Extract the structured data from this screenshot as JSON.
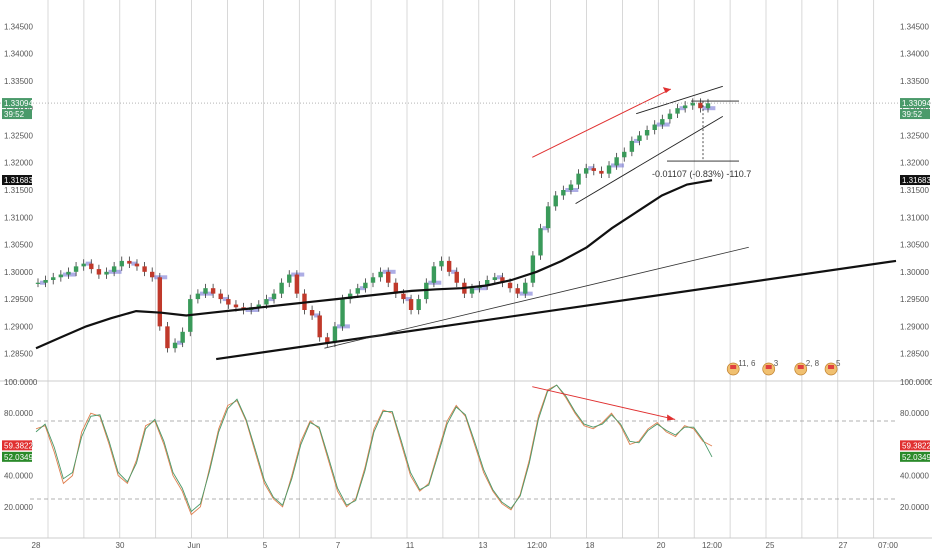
{
  "chart_data": [
    {
      "type": "candlestick",
      "panel": "price",
      "ylim": [
        1.282,
        1.348
      ],
      "y_ticks": [
        "1.34500",
        "1.34000",
        "1.33500",
        "1.33000",
        "1.32500",
        "1.32000",
        "1.31500",
        "1.31000",
        "1.30500",
        "1.30000",
        "1.29500",
        "1.29000",
        "1.28500"
      ],
      "x_ticks": [
        "28",
        "30",
        "Jun",
        "5",
        "7",
        "11",
        "13",
        "12:00",
        "18",
        "20",
        "12:00",
        "25",
        "27",
        "07:00"
      ],
      "last_price": {
        "label": "1.33094",
        "value": 1.33094,
        "color": "#4a9a6a"
      },
      "countdown": {
        "label": "39:52",
        "color": "#4a9a6a"
      },
      "level_marker": {
        "label": "1.31683",
        "value": 1.31683,
        "color": "#111111"
      },
      "measurement": {
        "text": "-0.01107 (-0.83%) -110.7",
        "from": 1.3313,
        "to": 1.3203
      },
      "grid": "vertical",
      "series": [
        {
          "kind": "ohlc",
          "description": "price candles",
          "values": [
            1.298,
            1.2985,
            1.299,
            1.2995,
            1.3,
            1.301,
            1.3015,
            1.3005,
            1.2995,
            1.3,
            1.301,
            1.302,
            1.3015,
            1.301,
            1.3,
            1.299,
            1.29,
            1.286,
            1.287,
            1.289,
            1.295,
            1.296,
            1.297,
            1.296,
            1.295,
            1.294,
            1.2935,
            1.293,
            1.2935,
            1.294,
            1.295,
            1.296,
            1.298,
            1.2995,
            1.296,
            1.293,
            1.292,
            1.288,
            1.287,
            1.29,
            1.295,
            1.296,
            1.297,
            1.298,
            1.299,
            1.3,
            1.298,
            1.296,
            1.295,
            1.293,
            1.295,
            1.298,
            1.301,
            1.302,
            1.3,
            1.298,
            1.296,
            1.297,
            1.2975,
            1.2985,
            1.299,
            1.298,
            1.297,
            1.296,
            1.298,
            1.303,
            1.308,
            1.312,
            1.314,
            1.315,
            1.316,
            1.318,
            1.319,
            1.3185,
            1.318,
            1.3195,
            1.321,
            1.322,
            1.324,
            1.325,
            1.326,
            1.327,
            1.328,
            1.329,
            1.33,
            1.3305,
            1.331,
            1.33,
            1.3309
          ]
        }
      ],
      "moving_average": {
        "name": "",
        "values": [
          1.286,
          1.288,
          1.29,
          1.2915,
          1.2928,
          1.2925,
          1.292,
          1.2925,
          1.293,
          1.2935,
          1.294,
          1.2945,
          1.295,
          1.2955,
          1.296,
          1.2965,
          1.2968,
          1.297,
          1.2975,
          1.2985,
          1.3,
          1.302,
          1.3045,
          1.308,
          1.311,
          1.314,
          1.316,
          1.3168
        ]
      },
      "trend_lines": [
        {
          "name": "",
          "color": "#111111",
          "width": 2.2,
          "points": [
            [
              0.215,
              1.284
            ],
            [
              1.0,
              1.302
            ]
          ]
        },
        {
          "name": "",
          "color": "#333333",
          "width": 0.8,
          "points": [
            [
              0.34,
              1.286
            ],
            [
              0.83,
              1.3045
            ]
          ]
        },
        {
          "name": "",
          "color": "#e03030",
          "width": 1,
          "arrow": true,
          "points": [
            [
              0.58,
              1.321
            ],
            [
              0.74,
              1.3335
            ]
          ]
        }
      ],
      "channel": {
        "upper": [
          [
            0.7,
            1.329
          ],
          [
            0.8,
            1.334
          ]
        ],
        "lower": [
          [
            0.63,
            1.3125
          ],
          [
            0.8,
            1.3285
          ]
        ]
      },
      "event_icons": [
        {
          "position": 0.812,
          "label": "11, 6"
        },
        {
          "position": 0.853,
          "label": "3"
        },
        {
          "position": 0.89,
          "label": "2, 8"
        },
        {
          "position": 0.925,
          "label": "5"
        }
      ]
    },
    {
      "type": "line",
      "panel": "oscillator",
      "ylim": [
        0,
        100
      ],
      "y_ticks": [
        "100.0000",
        "80.0000",
        "60.0000",
        "40.0000",
        "20.0000"
      ],
      "levels": [
        75,
        25
      ],
      "value_badges": [
        {
          "label": "59.3822",
          "value": 59.3822,
          "color": "#e03030"
        },
        {
          "label": "52.0349",
          "value": 52.0349,
          "color": "#2a8a2a"
        }
      ],
      "series": [
        {
          "name": "",
          "color": "#e08050",
          "values": [
            70,
            72,
            55,
            35,
            40,
            68,
            80,
            78,
            60,
            40,
            35,
            50,
            72,
            75,
            60,
            40,
            30,
            15,
            20,
            45,
            70,
            85,
            88,
            75,
            55,
            35,
            25,
            20,
            40,
            62,
            75,
            70,
            50,
            30,
            20,
            25,
            45,
            70,
            82,
            80,
            60,
            40,
            30,
            35,
            55,
            75,
            85,
            78,
            60,
            42,
            30,
            22,
            18,
            28,
            50,
            78,
            95,
            98,
            90,
            80,
            72,
            70,
            74,
            80,
            72,
            60,
            62,
            70,
            74,
            68,
            65,
            72,
            70,
            62,
            59
          ]
        },
        {
          "name": "",
          "color": "#4a9a6a",
          "values": [
            68,
            73,
            58,
            38,
            42,
            65,
            78,
            79,
            62,
            42,
            36,
            48,
            70,
            76,
            62,
            42,
            32,
            17,
            22,
            43,
            68,
            83,
            89,
            76,
            57,
            37,
            26,
            21,
            38,
            60,
            74,
            71,
            52,
            32,
            21,
            24,
            43,
            68,
            81,
            81,
            62,
            42,
            31,
            34,
            53,
            73,
            84,
            79,
            62,
            44,
            31,
            23,
            19,
            27,
            48,
            76,
            94,
            98,
            91,
            81,
            73,
            71,
            73,
            79,
            73,
            62,
            61,
            69,
            73,
            69,
            66,
            71,
            71,
            63,
            52
          ]
        }
      ],
      "divergence_line": {
        "color": "#e03030",
        "points": [
          [
            0.58,
            97
          ],
          [
            0.745,
            76
          ]
        ]
      }
    }
  ]
}
